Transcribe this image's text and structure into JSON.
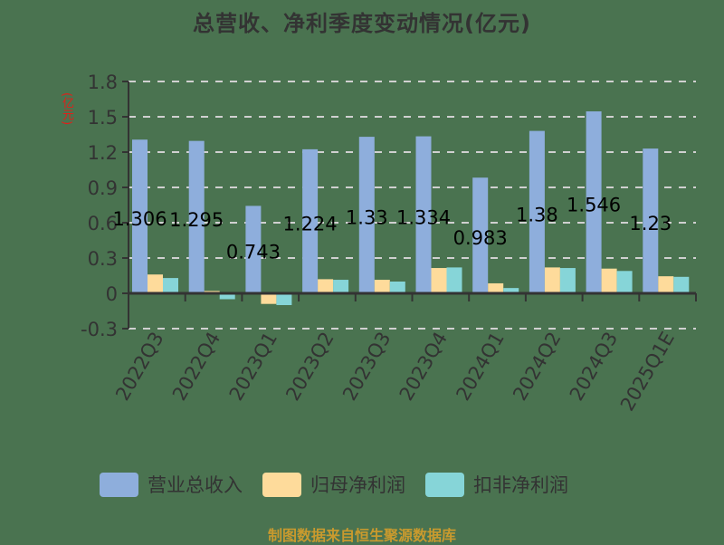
{
  "title": "总营收、净利季度变动情况(亿元)",
  "unit_label": "(亿元)",
  "footer": "制图数据来自恒生聚源数据库",
  "colors": {
    "background": "#4a7350",
    "revenue": "#8eaedc",
    "net_profit": "#fedb9b",
    "deducted_net_profit": "#86d5d8",
    "grid": "#d0d0d0",
    "axis": "#333333",
    "unit": "#e0201a",
    "footer": "#c99a2e"
  },
  "legend": [
    {
      "label": "营业总收入",
      "color": "#8eaedc"
    },
    {
      "label": "归母净利润",
      "color": "#fedb9b"
    },
    {
      "label": "扣非净利润",
      "color": "#86d5d8"
    }
  ],
  "chart_data": {
    "type": "bar",
    "title": "总营收、净利季度变动情况(亿元)",
    "xlabel": "",
    "ylabel": "(亿元)",
    "ylim": [
      -0.3,
      1.8
    ],
    "yticks": [
      -0.3,
      0,
      0.3,
      0.6,
      0.9,
      1.2,
      1.5,
      1.8
    ],
    "ytick_labels": [
      "-0.3",
      "0",
      "0.3",
      "0.6",
      "0.9",
      "1.2",
      "1.5",
      "1.8"
    ],
    "grid": true,
    "legend_position": "bottom",
    "categories": [
      "2022Q3",
      "2022Q4",
      "2023Q1",
      "2023Q2",
      "2023Q3",
      "2023Q4",
      "2024Q1",
      "2024Q2",
      "2024Q3",
      "2025Q1E"
    ],
    "series": [
      {
        "name": "营业总收入",
        "values": [
          1.306,
          1.295,
          0.743,
          1.224,
          1.33,
          1.334,
          0.983,
          1.38,
          1.546,
          1.23
        ]
      },
      {
        "name": "归母净利润",
        "values": [
          0.16,
          0.02,
          -0.09,
          0.12,
          0.115,
          0.215,
          0.085,
          0.22,
          0.21,
          0.145
        ]
      },
      {
        "name": "扣非净利润",
        "values": [
          0.13,
          -0.05,
          -0.1,
          0.115,
          0.1,
          0.22,
          0.045,
          0.215,
          0.19,
          0.14
        ]
      }
    ],
    "data_labels": [
      "1.306",
      "1.295",
      "0.743",
      "1.224",
      "1.33",
      "1.334",
      "0.983",
      "1.38",
      "1.546",
      "1.23"
    ]
  }
}
